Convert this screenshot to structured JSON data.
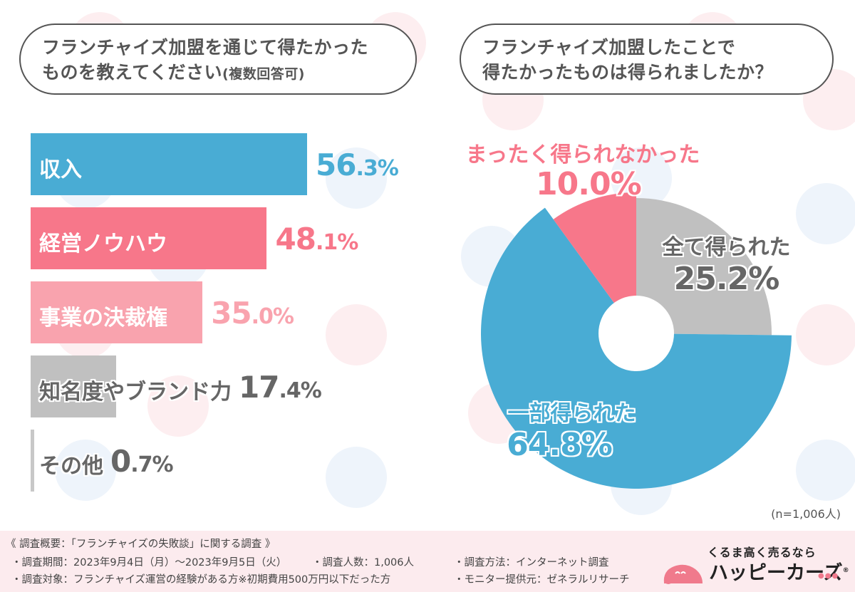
{
  "questions": {
    "q1_line1": "フランチャイズ加盟を通じて得たかった",
    "q1_line2": "ものを教えてください",
    "q1_note": "(複数回答可)",
    "q2_line1": "フランチャイズ加盟したことで",
    "q2_line2": "得たかったものは得られましたか？"
  },
  "colors": {
    "blue": "#49acd4",
    "pink": "#f7778a",
    "light_pink": "#f9a3ae",
    "gray": "#c0c0c0",
    "light_gray": "#c8c8c8",
    "text_gray": "#666666",
    "footer_bg": "#fcebee",
    "dot_pink": "#fdeef0",
    "dot_blue": "#eef4fb"
  },
  "chart_data": [
    {
      "type": "bar",
      "orientation": "horizontal",
      "title": "フランチャイズ加盟を通じて得たかったものを教えてください(複数回答可)",
      "categories": [
        "収入",
        "経営ノウハウ",
        "事業の決裁権",
        "知名度やブランド力",
        "その他"
      ],
      "values": [
        56.3,
        48.1,
        35.0,
        17.4,
        0.7
      ],
      "value_labels": [
        {
          "int": "56",
          "dec": ".3%"
        },
        {
          "int": "48",
          "dec": ".1%"
        },
        {
          "int": "35",
          "dec": ".0%"
        },
        {
          "int": "17",
          "dec": ".4%"
        },
        {
          "int": "0",
          "dec": ".7%"
        }
      ],
      "unit": "%",
      "xlabel": "",
      "ylabel": "",
      "grid": false,
      "legend": "none"
    },
    {
      "type": "pie",
      "style": "donut-exploded-radius",
      "title": "フランチャイズ加盟したことで得たかったものは得られましたか？",
      "categories": [
        "全て得られた",
        "一部得られた",
        "まったく得られなかった"
      ],
      "values": [
        25.2,
        64.8,
        10.0
      ],
      "value_labels": [
        {
          "int": "25",
          "dec": ".2%"
        },
        {
          "int": "64",
          "dec": ".8%"
        },
        {
          "int": "10",
          "dec": ".0%"
        }
      ],
      "unit": "%",
      "start": "top",
      "direction": "clockwise",
      "legend": "none",
      "note": "(n=1,006人)"
    }
  ],
  "footer": {
    "heading": "《 調査概要：「フランチャイズの失敗談」に関する調査 》",
    "period": "・調査期間：2023年9月4日（月）～2023年9月5日（火）",
    "count": "・調査人数：1,006人",
    "method": "・調査方法：インターネット調査",
    "target": "・調査対象：フランチャイズ運営の経験がある方※初期費用500万円以下だった方",
    "monitor": "・モニター提供元：ゼネラルリサーチ"
  },
  "logo": {
    "tagline": "くるま高く売るなら",
    "name": "ハッピーカーズ",
    "mark": "®",
    "dots": "●●●"
  }
}
